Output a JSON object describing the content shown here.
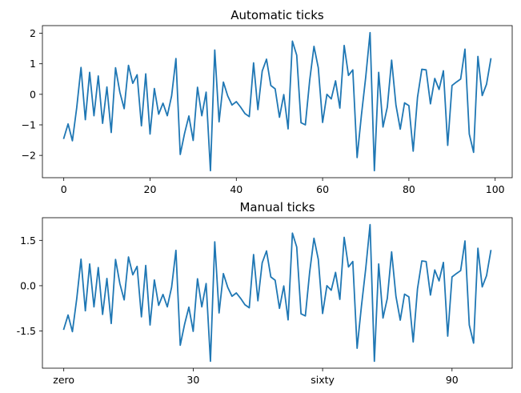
{
  "chart_data": [
    {
      "type": "line",
      "title": "Automatic ticks",
      "xlabel": "",
      "ylabel": "",
      "xlim": [
        -4.95,
        103.95
      ],
      "ylim": [
        -2.73,
        2.25
      ],
      "grid": false,
      "x_ticks": [
        {
          "value": 0,
          "label": "0"
        },
        {
          "value": 20,
          "label": "20"
        },
        {
          "value": 40,
          "label": "40"
        },
        {
          "value": 60,
          "label": "60"
        },
        {
          "value": 80,
          "label": "80"
        },
        {
          "value": 100,
          "label": "100"
        }
      ],
      "y_ticks": [
        {
          "value": -2,
          "label": "−2"
        },
        {
          "value": -1,
          "label": "−1"
        },
        {
          "value": 0,
          "label": "0"
        },
        {
          "value": 1,
          "label": "1"
        },
        {
          "value": 2,
          "label": "2"
        }
      ],
      "series": [
        {
          "color": "#1f77b4",
          "values": [
            -1.44,
            -0.97,
            -1.52,
            -0.44,
            0.88,
            -0.83,
            0.72,
            -0.7,
            0.6,
            -0.95,
            0.24,
            -1.25,
            0.87,
            0.07,
            -0.47,
            0.95,
            0.36,
            0.64,
            -1.03,
            0.67,
            -1.3,
            0.19,
            -0.65,
            -0.29,
            -0.7,
            -0.05,
            1.17,
            -1.97,
            -1.28,
            -0.71,
            -1.51,
            0.23,
            -0.7,
            0.07,
            -2.5,
            1.45,
            -0.9,
            0.4,
            -0.05,
            -0.35,
            -0.24,
            -0.42,
            -0.63,
            -0.73,
            1.03,
            -0.5,
            0.76,
            1.15,
            0.29,
            0.18,
            -0.75,
            -0.01,
            -1.13,
            1.74,
            1.28,
            -0.93,
            -1.0,
            0.45,
            1.57,
            0.87,
            -0.92,
            0.0,
            -0.15,
            0.44,
            -0.45,
            1.6,
            0.62,
            0.8,
            -2.07,
            -0.68,
            0.57,
            2.02,
            -2.5,
            0.72,
            -1.07,
            -0.42,
            1.12,
            -0.35,
            -1.14,
            -0.28,
            -0.37,
            -1.86,
            -0.1,
            0.82,
            0.8,
            -0.31,
            0.52,
            0.16,
            0.77,
            -1.67,
            0.29,
            0.4,
            0.5,
            1.48,
            -1.3,
            -1.9,
            1.24,
            -0.04,
            0.33,
            1.16
          ]
        }
      ]
    },
    {
      "type": "line",
      "title": "Manual ticks",
      "xlabel": "",
      "ylabel": "",
      "xlim": [
        -4.95,
        103.95
      ],
      "ylim": [
        -2.73,
        2.25
      ],
      "grid": false,
      "x_ticks": [
        {
          "value": 0,
          "label": "zero"
        },
        {
          "value": 30,
          "label": "30"
        },
        {
          "value": 60,
          "label": "sixty"
        },
        {
          "value": 90,
          "label": "90"
        }
      ],
      "y_ticks": [
        {
          "value": -1.5,
          "label": "-1.5"
        },
        {
          "value": 0,
          "label": "0.0"
        },
        {
          "value": 1.5,
          "label": "1.5"
        }
      ],
      "series": [
        {
          "color": "#1f77b4",
          "values": [
            -1.44,
            -0.97,
            -1.52,
            -0.44,
            0.88,
            -0.83,
            0.72,
            -0.7,
            0.6,
            -0.95,
            0.24,
            -1.25,
            0.87,
            0.07,
            -0.47,
            0.95,
            0.36,
            0.64,
            -1.03,
            0.67,
            -1.3,
            0.19,
            -0.65,
            -0.29,
            -0.7,
            -0.05,
            1.17,
            -1.97,
            -1.28,
            -0.71,
            -1.51,
            0.23,
            -0.7,
            0.07,
            -2.5,
            1.45,
            -0.9,
            0.4,
            -0.05,
            -0.35,
            -0.24,
            -0.42,
            -0.63,
            -0.73,
            1.03,
            -0.5,
            0.76,
            1.15,
            0.29,
            0.18,
            -0.75,
            -0.01,
            -1.13,
            1.74,
            1.28,
            -0.93,
            -1.0,
            0.45,
            1.57,
            0.87,
            -0.92,
            0.0,
            -0.15,
            0.44,
            -0.45,
            1.6,
            0.62,
            0.8,
            -2.07,
            -0.68,
            0.57,
            2.02,
            -2.5,
            0.72,
            -1.07,
            -0.42,
            1.12,
            -0.35,
            -1.14,
            -0.28,
            -0.37,
            -1.86,
            -0.1,
            0.82,
            0.8,
            -0.31,
            0.52,
            0.16,
            0.77,
            -1.67,
            0.29,
            0.4,
            0.5,
            1.48,
            -1.3,
            -1.9,
            1.24,
            -0.04,
            0.33,
            1.16
          ]
        }
      ]
    }
  ]
}
